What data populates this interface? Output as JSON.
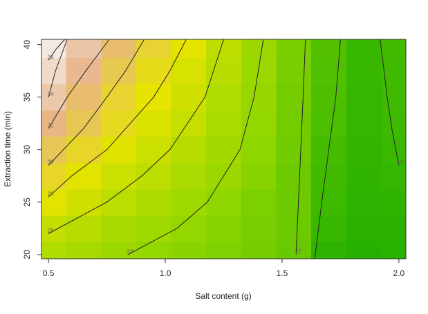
{
  "chart_data": {
    "type": "contour",
    "xlabel": "Salt content (g)",
    "ylabel": "Extraction time (min)",
    "xlim": [
      0.47,
      2.03
    ],
    "ylim": [
      19.6,
      40.5
    ],
    "xticks": [
      0.5,
      {
        "value": 1.0,
        "label": "1.0"
      },
      1.5,
      {
        "value": 2.0,
        "label": "2.0"
      }
    ],
    "yticks": [
      20,
      25,
      30,
      35,
      40
    ],
    "zlim": [
      19,
      37
    ],
    "colors": [
      "#1fae00",
      "#8ed600",
      "#e6e400",
      "#e8b48a",
      "#f4efee"
    ],
    "line_color": "#222222",
    "grid": {
      "x": [
        0.5,
        0.65,
        0.8,
        0.95,
        1.1,
        1.25,
        1.4,
        1.55,
        1.7,
        1.85,
        2.0
      ],
      "y": [
        20,
        22.5,
        25,
        27.5,
        30,
        32.5,
        35,
        37.5,
        40
      ],
      "z": [
        [
          25.3,
          24.8,
          24.2,
          23.7,
          23.3,
          22.9,
          22.5,
          22.0,
          19.6,
          19.3,
          19.4
        ],
        [
          26.2,
          25.6,
          24.9,
          24.4,
          23.8,
          23.2,
          22.6,
          22.1,
          20.0,
          19.5,
          19.5
        ],
        [
          27.8,
          26.8,
          25.8,
          25.1,
          24.4,
          23.6,
          22.8,
          22.1,
          20.2,
          19.6,
          19.7
        ],
        [
          29.3,
          27.8,
          26.6,
          25.8,
          25.0,
          24.2,
          23.2,
          22.2,
          20.4,
          19.7,
          19.9
        ],
        [
          30.8,
          29.3,
          27.7,
          26.6,
          25.6,
          24.6,
          23.5,
          22.3,
          20.6,
          19.8,
          20.1
        ],
        [
          32.3,
          30.7,
          29.0,
          27.5,
          26.3,
          25.0,
          23.7,
          22.4,
          20.8,
          19.9,
          20.2
        ],
        [
          34.0,
          31.6,
          29.6,
          28.0,
          26.8,
          25.3,
          23.9,
          22.5,
          20.9,
          19.9,
          20.3
        ],
        [
          35.4,
          32.8,
          30.6,
          28.8,
          27.3,
          25.7,
          24.1,
          22.6,
          21.0,
          20.0,
          20.3
        ],
        [
          36.5,
          33.8,
          31.6,
          29.6,
          27.9,
          26.0,
          24.2,
          22.7,
          21.1,
          20.0,
          20.4
        ]
      ]
    },
    "contours": [
      {
        "level": 36,
        "x": [
          0.5,
          0.53,
          0.57
        ],
        "y": [
          38.5,
          39.5,
          40.5
        ]
      },
      {
        "level": 34,
        "x": [
          0.5,
          0.53,
          0.58
        ],
        "y": [
          35,
          37.5,
          40.5
        ]
      },
      {
        "level": 32,
        "x": [
          0.5,
          0.58,
          0.66,
          0.76
        ],
        "y": [
          32,
          35,
          37.5,
          40.5
        ]
      },
      {
        "level": 30,
        "x": [
          0.5,
          0.65,
          0.75,
          0.83,
          0.91
        ],
        "y": [
          28.5,
          32,
          35,
          37.5,
          40.5
        ]
      },
      {
        "level": 28,
        "x": [
          0.5,
          0.6,
          0.75,
          0.95,
          1.02,
          1.09
        ],
        "y": [
          25.5,
          27.5,
          30,
          35,
          37.5,
          40.5
        ]
      },
      {
        "level": 26,
        "x": [
          0.5,
          0.75,
          0.9,
          1.02,
          1.17,
          1.25
        ],
        "y": [
          22,
          25,
          27.5,
          30,
          35,
          40.5
        ]
      },
      {
        "level": 24,
        "x": [
          0.84,
          1.05,
          1.18,
          1.32,
          1.38,
          1.42
        ],
        "y": [
          20,
          22.5,
          25,
          30,
          35,
          40.5
        ]
      },
      {
        "level": 22,
        "x": [
          1.56,
          1.57,
          1.58,
          1.59,
          1.6
        ],
        "y": [
          20,
          25,
          30,
          35,
          40.5
        ]
      },
      {
        "level": 20,
        "show_label": false,
        "x": [
          1.64,
          1.67,
          1.7,
          1.73,
          1.75
        ],
        "y": [
          19.6,
          25,
          30,
          35,
          40.5
        ]
      },
      {
        "level": 20,
        "x": [
          2.0,
          1.97,
          1.95,
          1.92
        ],
        "y": [
          28.5,
          32,
          35,
          40.5
        ]
      }
    ]
  }
}
